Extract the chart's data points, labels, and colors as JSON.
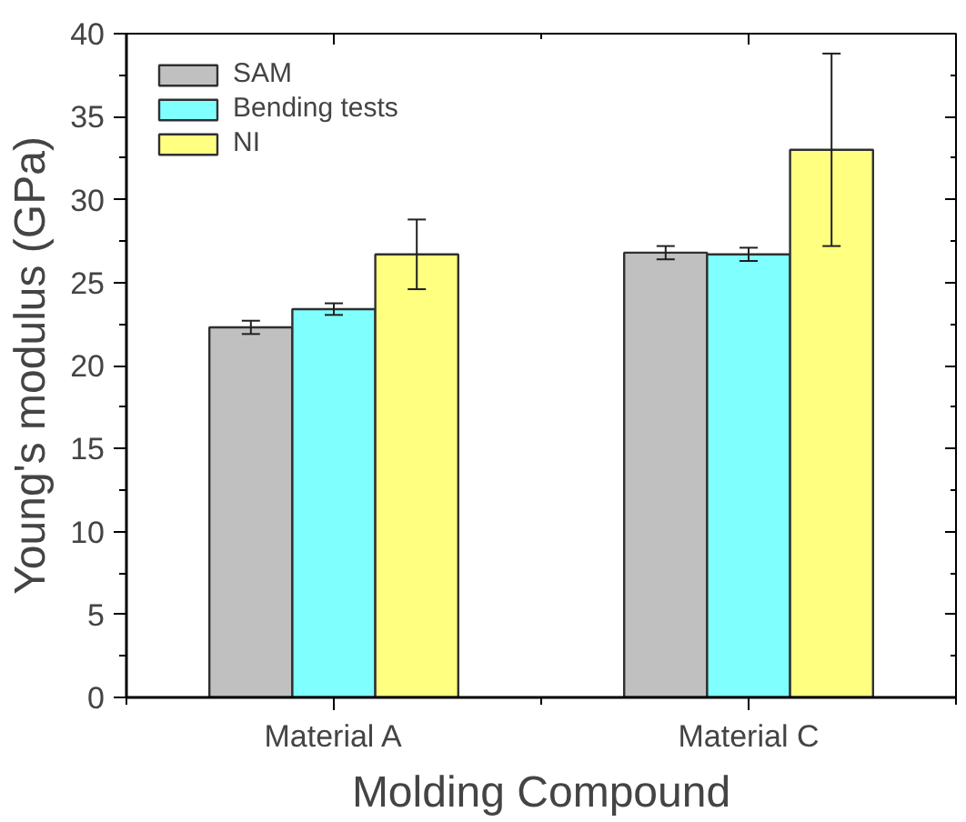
{
  "chart_data": {
    "type": "bar",
    "xlabel": "Molding Compound",
    "ylabel": "Young's modulus (GPa)",
    "categories": [
      "Material A",
      "Material C"
    ],
    "series": [
      {
        "name": "SAM",
        "color": "#c0c0c0",
        "values": [
          22.3,
          26.8
        ],
        "errors": [
          0.4,
          0.4
        ]
      },
      {
        "name": "Bending tests",
        "color": "#80ffff",
        "values": [
          23.4,
          26.7
        ],
        "errors": [
          0.35,
          0.4
        ]
      },
      {
        "name": "NI",
        "color": "#ffff80",
        "values": [
          26.7,
          33.0
        ],
        "errors": [
          2.1,
          5.8
        ]
      }
    ],
    "ylim": [
      0,
      40
    ],
    "yticks": [
      0,
      5,
      10,
      15,
      20,
      25,
      30,
      35,
      40
    ],
    "grid": false,
    "legend": "top left"
  }
}
